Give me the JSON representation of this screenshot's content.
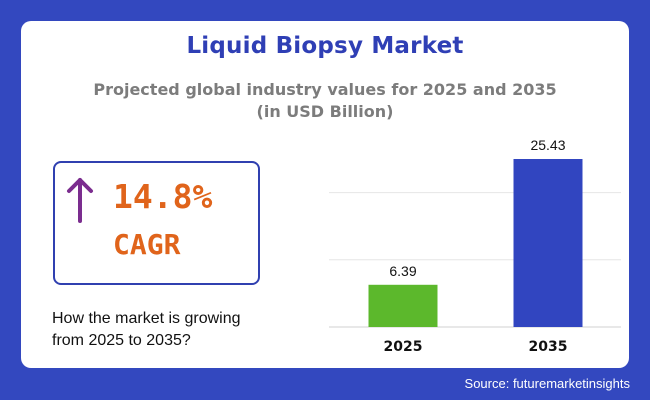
{
  "title": "Liquid Biopsy Market",
  "subtitle_line1": "Projected global industry values for 2025 and 2035",
  "subtitle_line2": "(in USD Billion)",
  "cagr": {
    "value": "14.8%",
    "label": "CAGR",
    "icon": "arrow-up-icon",
    "color": "#e0641b",
    "arrow_color": "#7b2d8f"
  },
  "question_line1": "How the market is growing",
  "question_line2": "from 2025 to 2035?",
  "source": "Source: futuremarketinsights",
  "colors": {
    "background": "#3348bf",
    "title": "#2f3fb5",
    "bar_2025": "#5cb82c",
    "bar_2035": "#3145c0"
  },
  "chart_data": {
    "type": "bar",
    "categories": [
      "2025",
      "2035"
    ],
    "values": [
      6.39,
      25.43
    ],
    "value_labels": [
      "6.39",
      "25.43"
    ],
    "colors": [
      "#5cb82c",
      "#3145c0"
    ],
    "ylim": [
      0,
      25.43
    ],
    "grid": true
  }
}
